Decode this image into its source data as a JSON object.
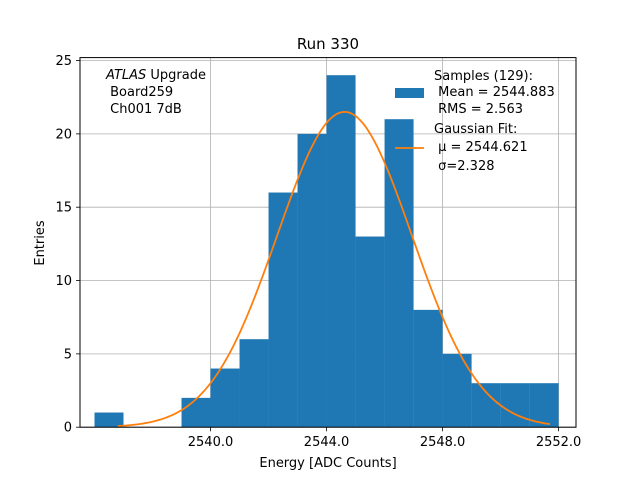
{
  "chart_data": {
    "type": "bar",
    "title": "Run 330",
    "xlabel": "Energy [ADC Counts]",
    "ylabel": "Entries",
    "xlim": [
      2535.5,
      2552.6
    ],
    "ylim": [
      0,
      25.2
    ],
    "xticks": [
      2540.0,
      2544.0,
      2548.0,
      2552.0
    ],
    "xtick_labels": [
      "2540.0",
      "2544.0",
      "2548.0",
      "2552.0"
    ],
    "yticks": [
      0,
      5,
      10,
      15,
      20,
      25
    ],
    "ytick_labels": [
      "0",
      "5",
      "10",
      "15",
      "20",
      "25"
    ],
    "grid": true,
    "bar_color": "#1f77b4",
    "fit_color": "#ff7f0e",
    "histogram": {
      "bin_edges": [
        2536.0,
        2537.0,
        2538.0,
        2539.0,
        2540.0,
        2541.0,
        2542.0,
        2543.0,
        2544.0,
        2545.0,
        2546.0,
        2547.0,
        2548.0,
        2549.0,
        2550.0,
        2551.0,
        2552.0
      ],
      "counts": [
        1,
        0,
        0,
        2,
        4,
        6,
        16,
        20,
        24,
        13,
        21,
        8,
        5,
        3,
        3,
        3
      ]
    },
    "series": [
      {
        "name": "Samples (129):",
        "type": "histogram",
        "stats": [
          " Mean = 2544.883",
          " RMS = 2.563"
        ]
      },
      {
        "name": "Gaussian Fit:",
        "type": "line",
        "mu": 2544.621,
        "sigma": 2.328,
        "amplitude": 21.5,
        "x_range": [
          2536.8,
          2551.7
        ],
        "stats": [
          " μ = 2544.621",
          " σ=2.328"
        ]
      }
    ],
    "annotation": {
      "italic": "ATLAS",
      "rest": " Upgrade",
      "lines": [
        " Board259",
        " Ch001 7dB"
      ]
    },
    "legend_location": "top-right"
  }
}
